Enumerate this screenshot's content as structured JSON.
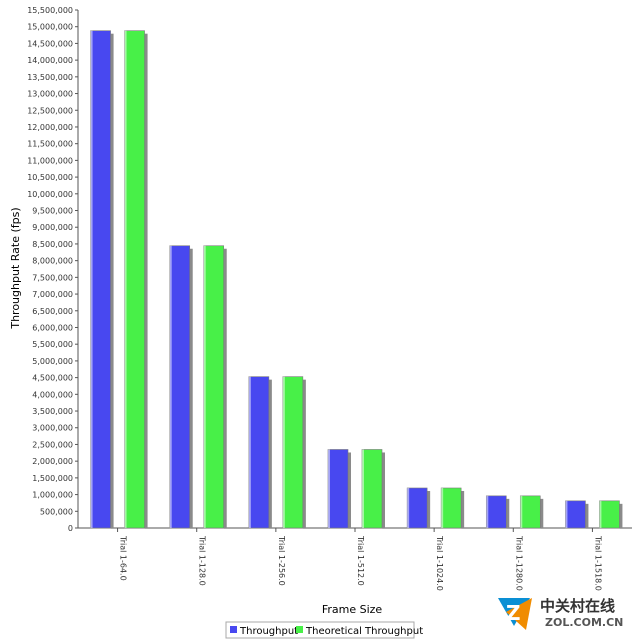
{
  "chart_data": {
    "type": "bar",
    "title": "",
    "xlabel": "Frame Size",
    "ylabel": "Throughput Rate (fps)",
    "ylim": [
      0,
      15500000
    ],
    "categories": [
      "Trial 1-64.0",
      "Trial 1-128.0",
      "Trial 1-256.0",
      "Trial 1-512.0",
      "Trial 1-1024.0",
      "Trial 1-1280.0",
      "Trial 1-1518.0"
    ],
    "yticks": [
      "0",
      "500,000",
      "1,000,000",
      "1,500,000",
      "2,000,000",
      "2,500,000",
      "3,000,000",
      "3,500,000",
      "4,000,000",
      "4,500,000",
      "5,000,000",
      "5,500,000",
      "6,000,000",
      "6,500,000",
      "7,000,000",
      "7,500,000",
      "8,000,000",
      "8,500,000",
      "9,000,000",
      "9,500,000",
      "10,000,000",
      "10,500,000",
      "11,000,000",
      "11,500,000",
      "12,000,000",
      "12,500,000",
      "13,000,000",
      "13,500,000",
      "14,000,000",
      "14,500,000",
      "15,000,000",
      "15,500,000"
    ],
    "series": [
      {
        "name": "Throughput",
        "color": "#4848f0",
        "values": [
          14880952,
          8445946,
          4528986,
          2349624,
          1197318,
          961538,
          812744
        ]
      },
      {
        "name": "Theoretical Throughput",
        "color": "#48f048",
        "values": [
          14880952,
          8445946,
          4528986,
          2349624,
          1197318,
          961538,
          812744
        ]
      }
    ],
    "legend_position": "bottom-center",
    "grid": false
  },
  "watermark": {
    "logo_letter": "Z",
    "brand_cn": "中关村在线",
    "brand_en": "ZOL.COM.CN",
    "logo_colors": [
      "#0a8fd4",
      "#f08c00"
    ]
  }
}
